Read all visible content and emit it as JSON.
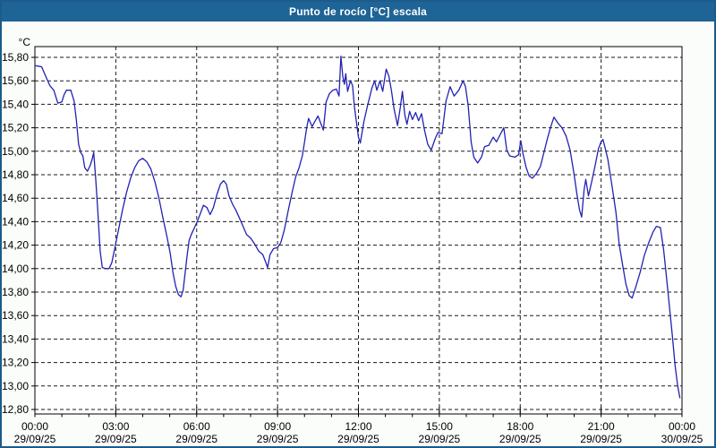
{
  "window": {
    "title": "Punto de rocío [°C] escala",
    "titlebar_color": "#1e6496",
    "border_color": "#1c5b8a",
    "background_color": "#fbfdfb"
  },
  "chart_data": {
    "type": "line",
    "title": "Punto de rocío [°C] escala",
    "ylabel": "°C",
    "unit_label": "°C",
    "line_color": "#2222b2",
    "grid": "dashed",
    "grid_color": "#1a1a1a",
    "plot_background": "#ffffff",
    "ylim": [
      12.8,
      15.8
    ],
    "y_tick_step": 0.2,
    "y_tick_labels": [
      "15,80",
      "15,60",
      "15,40",
      "15,20",
      "15,00",
      "14,80",
      "14,60",
      "14,40",
      "14,20",
      "14,00",
      "13,80",
      "13,60",
      "13,40",
      "13,20",
      "13,00",
      "12,80"
    ],
    "x_range_hours": [
      0,
      24
    ],
    "x_major_step_hours": 3,
    "x_minor_step_hours": 1,
    "x_ticks": [
      {
        "time": "00:00",
        "date": "29/09/25"
      },
      {
        "time": "03:00",
        "date": "29/09/25"
      },
      {
        "time": "06:00",
        "date": "29/09/25"
      },
      {
        "time": "09:00",
        "date": "29/09/25"
      },
      {
        "time": "12:00",
        "date": "29/09/25"
      },
      {
        "time": "15:00",
        "date": "29/09/25"
      },
      {
        "time": "18:00",
        "date": "29/09/25"
      },
      {
        "time": "21:00",
        "date": "29/09/25"
      },
      {
        "time": "00:00",
        "date": "30/09/25"
      }
    ],
    "series": [
      {
        "name": "Punto de rocío",
        "points": [
          [
            0.0,
            15.73
          ],
          [
            0.25,
            15.72
          ],
          [
            0.4,
            15.64
          ],
          [
            0.55,
            15.56
          ],
          [
            0.7,
            15.52
          ],
          [
            0.85,
            15.41
          ],
          [
            1.0,
            15.42
          ],
          [
            1.08,
            15.48
          ],
          [
            1.17,
            15.52
          ],
          [
            1.33,
            15.52
          ],
          [
            1.45,
            15.43
          ],
          [
            1.54,
            15.26
          ],
          [
            1.62,
            15.06
          ],
          [
            1.7,
            14.99
          ],
          [
            1.78,
            14.96
          ],
          [
            1.85,
            14.86
          ],
          [
            1.95,
            14.83
          ],
          [
            2.05,
            14.88
          ],
          [
            2.12,
            14.93
          ],
          [
            2.18,
            14.99
          ],
          [
            2.25,
            14.78
          ],
          [
            2.33,
            14.5
          ],
          [
            2.42,
            14.15
          ],
          [
            2.5,
            14.01
          ],
          [
            2.62,
            14.0
          ],
          [
            2.75,
            14.0
          ],
          [
            2.85,
            14.05
          ],
          [
            2.95,
            14.16
          ],
          [
            3.1,
            14.33
          ],
          [
            3.25,
            14.5
          ],
          [
            3.4,
            14.65
          ],
          [
            3.55,
            14.77
          ],
          [
            3.7,
            14.86
          ],
          [
            3.85,
            14.92
          ],
          [
            4.0,
            14.94
          ],
          [
            4.15,
            14.91
          ],
          [
            4.3,
            14.85
          ],
          [
            4.45,
            14.74
          ],
          [
            4.6,
            14.6
          ],
          [
            4.75,
            14.43
          ],
          [
            4.9,
            14.27
          ],
          [
            5.02,
            14.13
          ],
          [
            5.12,
            13.97
          ],
          [
            5.22,
            13.85
          ],
          [
            5.32,
            13.78
          ],
          [
            5.42,
            13.76
          ],
          [
            5.5,
            13.82
          ],
          [
            5.58,
            13.98
          ],
          [
            5.65,
            14.12
          ],
          [
            5.72,
            14.24
          ],
          [
            5.8,
            14.29
          ],
          [
            5.9,
            14.34
          ],
          [
            6.0,
            14.39
          ],
          [
            6.12,
            14.46
          ],
          [
            6.25,
            14.54
          ],
          [
            6.38,
            14.52
          ],
          [
            6.5,
            14.46
          ],
          [
            6.62,
            14.52
          ],
          [
            6.75,
            14.63
          ],
          [
            6.88,
            14.72
          ],
          [
            7.0,
            14.75
          ],
          [
            7.1,
            14.72
          ],
          [
            7.2,
            14.62
          ],
          [
            7.33,
            14.55
          ],
          [
            7.45,
            14.5
          ],
          [
            7.57,
            14.44
          ],
          [
            7.7,
            14.37
          ],
          [
            7.85,
            14.29
          ],
          [
            8.0,
            14.26
          ],
          [
            8.15,
            14.21
          ],
          [
            8.3,
            14.15
          ],
          [
            8.45,
            14.12
          ],
          [
            8.55,
            14.06
          ],
          [
            8.63,
            14.01
          ],
          [
            8.72,
            14.12
          ],
          [
            8.85,
            14.17
          ],
          [
            9.0,
            14.18
          ],
          [
            9.12,
            14.22
          ],
          [
            9.25,
            14.33
          ],
          [
            9.4,
            14.5
          ],
          [
            9.55,
            14.66
          ],
          [
            9.67,
            14.78
          ],
          [
            9.8,
            14.86
          ],
          [
            9.92,
            14.96
          ],
          [
            10.0,
            15.08
          ],
          [
            10.08,
            15.2
          ],
          [
            10.15,
            15.28
          ],
          [
            10.28,
            15.21
          ],
          [
            10.4,
            15.26
          ],
          [
            10.5,
            15.3
          ],
          [
            10.6,
            15.24
          ],
          [
            10.7,
            15.18
          ],
          [
            10.8,
            15.42
          ],
          [
            10.92,
            15.49
          ],
          [
            11.05,
            15.52
          ],
          [
            11.18,
            15.53
          ],
          [
            11.28,
            15.47
          ],
          [
            11.35,
            15.81
          ],
          [
            11.42,
            15.64
          ],
          [
            11.48,
            15.57
          ],
          [
            11.53,
            15.66
          ],
          [
            11.6,
            15.51
          ],
          [
            11.7,
            15.6
          ],
          [
            11.78,
            15.56
          ],
          [
            11.85,
            15.38
          ],
          [
            11.93,
            15.24
          ],
          [
            12.0,
            15.12
          ],
          [
            12.07,
            15.07
          ],
          [
            12.2,
            15.25
          ],
          [
            12.35,
            15.4
          ],
          [
            12.5,
            15.54
          ],
          [
            12.6,
            15.6
          ],
          [
            12.68,
            15.52
          ],
          [
            12.8,
            15.6
          ],
          [
            12.9,
            15.51
          ],
          [
            13.03,
            15.7
          ],
          [
            13.13,
            15.64
          ],
          [
            13.22,
            15.52
          ],
          [
            13.32,
            15.36
          ],
          [
            13.45,
            15.22
          ],
          [
            13.55,
            15.37
          ],
          [
            13.63,
            15.51
          ],
          [
            13.72,
            15.31
          ],
          [
            13.8,
            15.23
          ],
          [
            13.9,
            15.34
          ],
          [
            14.0,
            15.27
          ],
          [
            14.12,
            15.33
          ],
          [
            14.23,
            15.26
          ],
          [
            14.34,
            15.32
          ],
          [
            14.45,
            15.18
          ],
          [
            14.57,
            15.06
          ],
          [
            14.7,
            15.01
          ],
          [
            14.85,
            15.11
          ],
          [
            14.95,
            15.16
          ],
          [
            15.1,
            15.15
          ],
          [
            15.25,
            15.43
          ],
          [
            15.4,
            15.55
          ],
          [
            15.55,
            15.47
          ],
          [
            15.72,
            15.52
          ],
          [
            15.88,
            15.6
          ],
          [
            15.97,
            15.55
          ],
          [
            16.07,
            15.39
          ],
          [
            16.18,
            15.08
          ],
          [
            16.28,
            14.95
          ],
          [
            16.42,
            14.9
          ],
          [
            16.56,
            14.95
          ],
          [
            16.68,
            15.04
          ],
          [
            16.83,
            15.05
          ],
          [
            17.0,
            15.12
          ],
          [
            17.12,
            15.08
          ],
          [
            17.25,
            15.14
          ],
          [
            17.39,
            15.2
          ],
          [
            17.5,
            15.01
          ],
          [
            17.61,
            14.96
          ],
          [
            17.8,
            14.95
          ],
          [
            17.94,
            14.97
          ],
          [
            18.02,
            15.09
          ],
          [
            18.1,
            14.98
          ],
          [
            18.22,
            14.86
          ],
          [
            18.33,
            14.79
          ],
          [
            18.45,
            14.77
          ],
          [
            18.6,
            14.81
          ],
          [
            18.75,
            14.87
          ],
          [
            18.9,
            15.01
          ],
          [
            19.0,
            15.1
          ],
          [
            19.12,
            15.2
          ],
          [
            19.25,
            15.29
          ],
          [
            19.4,
            15.24
          ],
          [
            19.55,
            15.2
          ],
          [
            19.7,
            15.13
          ],
          [
            19.85,
            15.01
          ],
          [
            20.0,
            14.8
          ],
          [
            20.1,
            14.64
          ],
          [
            20.2,
            14.5
          ],
          [
            20.28,
            14.44
          ],
          [
            20.37,
            14.67
          ],
          [
            20.43,
            14.76
          ],
          [
            20.53,
            14.62
          ],
          [
            20.65,
            14.74
          ],
          [
            20.78,
            14.88
          ],
          [
            20.9,
            15.02
          ],
          [
            21.0,
            15.08
          ],
          [
            21.07,
            15.1
          ],
          [
            21.15,
            15.03
          ],
          [
            21.25,
            14.93
          ],
          [
            21.4,
            14.71
          ],
          [
            21.55,
            14.48
          ],
          [
            21.67,
            14.21
          ],
          [
            21.8,
            14.03
          ],
          [
            21.92,
            13.87
          ],
          [
            22.04,
            13.77
          ],
          [
            22.15,
            13.75
          ],
          [
            22.28,
            13.84
          ],
          [
            22.45,
            13.97
          ],
          [
            22.6,
            14.11
          ],
          [
            22.75,
            14.21
          ],
          [
            22.92,
            14.31
          ],
          [
            23.05,
            14.36
          ],
          [
            23.2,
            14.35
          ],
          [
            23.32,
            14.16
          ],
          [
            23.42,
            13.94
          ],
          [
            23.53,
            13.69
          ],
          [
            23.64,
            13.43
          ],
          [
            23.74,
            13.18
          ],
          [
            23.84,
            13.0
          ],
          [
            23.92,
            12.9
          ]
        ]
      }
    ]
  }
}
